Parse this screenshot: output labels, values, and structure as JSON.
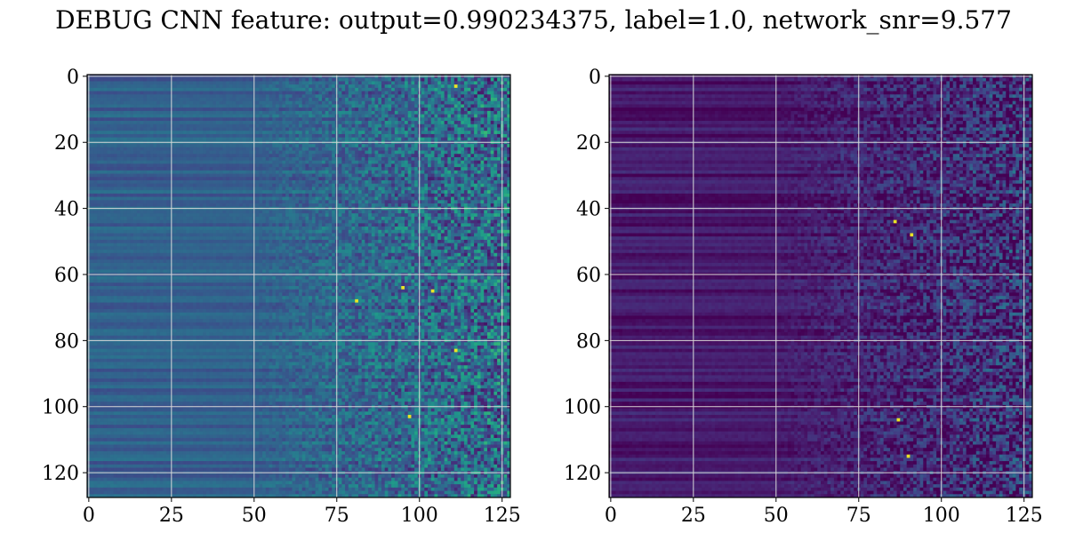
{
  "title": "DEBUG CNN feature: output=0.990234375, label=1.0, network_snr=9.577",
  "chart_data": [
    {
      "type": "heatmap",
      "panel": "left",
      "rows": 128,
      "cols": 128,
      "colormap": "viridis",
      "grid": true,
      "xlim": [
        0,
        127
      ],
      "ylim": [
        127,
        0
      ],
      "xticks": [
        "0",
        "25",
        "50",
        "75",
        "100",
        "125"
      ],
      "yticks": [
        "0",
        "20",
        "40",
        "60",
        "80",
        "100",
        "120"
      ],
      "hot_pixels": [
        [
          3,
          111
        ],
        [
          64,
          95
        ],
        [
          65,
          104
        ],
        [
          103,
          97
        ],
        [
          83,
          111
        ],
        [
          68,
          81
        ]
      ]
    },
    {
      "type": "heatmap",
      "panel": "right",
      "rows": 128,
      "cols": 128,
      "colormap": "viridis",
      "grid": true,
      "xlim": [
        0,
        127
      ],
      "ylim": [
        127,
        0
      ],
      "xticks": [
        "0",
        "25",
        "50",
        "75",
        "100",
        "125"
      ],
      "yticks": [
        "0",
        "20",
        "40",
        "60",
        "80",
        "100",
        "120"
      ],
      "hot_pixels": [
        [
          115,
          90
        ],
        [
          48,
          91
        ],
        [
          44,
          86
        ],
        [
          104,
          87
        ]
      ]
    }
  ]
}
